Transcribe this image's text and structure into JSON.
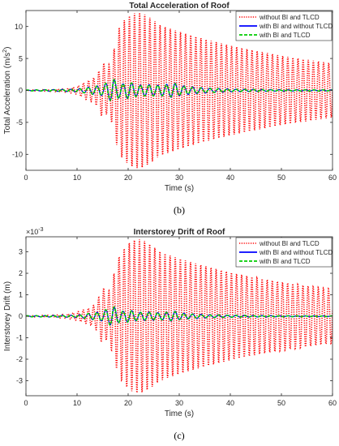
{
  "chart_data": [
    {
      "type": "line",
      "panel_label": "(b)",
      "title": "Total Acceleration of Roof",
      "xlabel": "Time (s)",
      "ylabel_main": "Total Acceleration (m/s",
      "ylabel_sup": "2",
      "ylabel_end": ")",
      "exponent_label": "",
      "xlim": [
        0,
        60
      ],
      "ylim": [
        -12.5,
        12.5
      ],
      "xticks": [
        0,
        10,
        20,
        30,
        40,
        50,
        60
      ],
      "yticks": [
        -10,
        -5,
        0,
        5,
        10
      ],
      "grid": false,
      "legend_position": "top-right",
      "series": [
        {
          "name": "without BI and TLCD",
          "color": "#ff0000",
          "style": "dotted",
          "envelope": [
            [
              0,
              0.05
            ],
            [
              5,
              0.15
            ],
            [
              8,
              0.3
            ],
            [
              10,
              0.6
            ],
            [
              12,
              1.5
            ],
            [
              13,
              1.8
            ],
            [
              14,
              2.5
            ],
            [
              15,
              4.5
            ],
            [
              16,
              3.5
            ],
            [
              17,
              5.5
            ],
            [
              18,
              9.5
            ],
            [
              19,
              10.8
            ],
            [
              20,
              11.5
            ],
            [
              21,
              12
            ],
            [
              22,
              12.2
            ],
            [
              23,
              12
            ],
            [
              24,
              11.5
            ],
            [
              25,
              11
            ],
            [
              26,
              10.3
            ],
            [
              28,
              9.7
            ],
            [
              30,
              9.2
            ],
            [
              32,
              8.7
            ],
            [
              35,
              8
            ],
            [
              40,
              7
            ],
            [
              45,
              6.2
            ],
            [
              50,
              5.4
            ],
            [
              55,
              4.8
            ],
            [
              60,
              4.2
            ]
          ],
          "period": 1.0,
          "phase": 0
        },
        {
          "name": "with BI and without TLCD",
          "color": "#0000ff",
          "style": "solid",
          "envelope": [
            [
              0,
              0.05
            ],
            [
              10,
              0.2
            ],
            [
              13,
              0.6
            ],
            [
              15,
              0.8
            ],
            [
              16,
              1.3
            ],
            [
              17,
              1.8
            ],
            [
              18,
              1.2
            ],
            [
              19,
              1.0
            ],
            [
              20,
              1.3
            ],
            [
              21,
              1.1
            ],
            [
              22,
              0.8
            ],
            [
              24,
              0.9
            ],
            [
              26,
              0.8
            ],
            [
              28,
              1.0
            ],
            [
              29,
              1.2
            ],
            [
              30,
              0.8
            ],
            [
              32,
              0.6
            ],
            [
              35,
              0.4
            ],
            [
              40,
              0.2
            ],
            [
              50,
              0.1
            ],
            [
              60,
              0.08
            ]
          ],
          "period": 1.7,
          "phase": 0.4
        },
        {
          "name": "with BI and TLCD",
          "color": "#00cc00",
          "style": "dashed",
          "envelope": [
            [
              0,
              0.05
            ],
            [
              10,
              0.2
            ],
            [
              13,
              0.6
            ],
            [
              15,
              0.8
            ],
            [
              16,
              1.3
            ],
            [
              17,
              1.9
            ],
            [
              18,
              1.3
            ],
            [
              19,
              1.0
            ],
            [
              20,
              1.3
            ],
            [
              21,
              1.1
            ],
            [
              22,
              0.8
            ],
            [
              24,
              0.9
            ],
            [
              26,
              0.8
            ],
            [
              28,
              0.9
            ],
            [
              29,
              1.1
            ],
            [
              30,
              0.8
            ],
            [
              32,
              0.5
            ],
            [
              35,
              0.35
            ],
            [
              40,
              0.2
            ],
            [
              50,
              0.1
            ],
            [
              60,
              0.08
            ]
          ],
          "period": 1.7,
          "phase": 0.5
        }
      ]
    },
    {
      "type": "line",
      "panel_label": "(c)",
      "title": "Interstorey Drift of Roof",
      "xlabel": "Time (s)",
      "ylabel_main": "Interstorey Drift (m)",
      "ylabel_sup": "",
      "ylabel_end": "",
      "exponent_label": "×10",
      "exponent_sup": "-3",
      "xlim": [
        0,
        60
      ],
      "ylim": [
        -3.7,
        3.7
      ],
      "xticks": [
        0,
        10,
        20,
        30,
        40,
        50,
        60
      ],
      "yticks": [
        -3,
        -2,
        -1,
        0,
        1,
        2,
        3
      ],
      "grid": false,
      "legend_position": "top-right",
      "series": [
        {
          "name": "without BI and TLCD",
          "color": "#ff0000",
          "style": "dotted",
          "envelope": [
            [
              0,
              0.02
            ],
            [
              5,
              0.05
            ],
            [
              8,
              0.1
            ],
            [
              10,
              0.2
            ],
            [
              12,
              0.35
            ],
            [
              13,
              0.45
            ],
            [
              14,
              0.7
            ],
            [
              15,
              1.4
            ],
            [
              16,
              1.0
            ],
            [
              17,
              1.8
            ],
            [
              18,
              2.7
            ],
            [
              19,
              3.1
            ],
            [
              20,
              3.4
            ],
            [
              21,
              3.55
            ],
            [
              22,
              3.6
            ],
            [
              23,
              3.55
            ],
            [
              24,
              3.4
            ],
            [
              25,
              3.25
            ],
            [
              26,
              3.05
            ],
            [
              28,
              2.85
            ],
            [
              30,
              2.7
            ],
            [
              32,
              2.55
            ],
            [
              35,
              2.35
            ],
            [
              40,
              2.05
            ],
            [
              45,
              1.8
            ],
            [
              50,
              1.6
            ],
            [
              55,
              1.42
            ],
            [
              60,
              1.25
            ]
          ],
          "period": 1.0,
          "phase": 0.2
        },
        {
          "name": "with BI and without TLCD",
          "color": "#0000ff",
          "style": "solid",
          "envelope": [
            [
              0,
              0.02
            ],
            [
              10,
              0.05
            ],
            [
              13,
              0.15
            ],
            [
              15,
              0.22
            ],
            [
              16,
              0.35
            ],
            [
              17,
              0.45
            ],
            [
              18,
              0.3
            ],
            [
              19,
              0.22
            ],
            [
              20,
              0.28
            ],
            [
              21,
              0.25
            ],
            [
              22,
              0.18
            ],
            [
              24,
              0.2
            ],
            [
              26,
              0.16
            ],
            [
              28,
              0.2
            ],
            [
              29,
              0.25
            ],
            [
              30,
              0.16
            ],
            [
              32,
              0.12
            ],
            [
              35,
              0.08
            ],
            [
              40,
              0.05
            ],
            [
              50,
              0.02
            ],
            [
              60,
              0.015
            ]
          ],
          "period": 1.7,
          "phase": 0.4
        },
        {
          "name": "with BI and TLCD",
          "color": "#00cc00",
          "style": "dashed",
          "envelope": [
            [
              0,
              0.02
            ],
            [
              10,
              0.05
            ],
            [
              13,
              0.15
            ],
            [
              15,
              0.22
            ],
            [
              16,
              0.36
            ],
            [
              17,
              0.48
            ],
            [
              18,
              0.32
            ],
            [
              19,
              0.23
            ],
            [
              20,
              0.28
            ],
            [
              21,
              0.25
            ],
            [
              22,
              0.18
            ],
            [
              24,
              0.2
            ],
            [
              26,
              0.16
            ],
            [
              28,
              0.18
            ],
            [
              29,
              0.22
            ],
            [
              30,
              0.15
            ],
            [
              32,
              0.1
            ],
            [
              35,
              0.07
            ],
            [
              40,
              0.04
            ],
            [
              50,
              0.02
            ],
            [
              60,
              0.015
            ]
          ],
          "period": 1.7,
          "phase": 0.5
        }
      ]
    }
  ]
}
